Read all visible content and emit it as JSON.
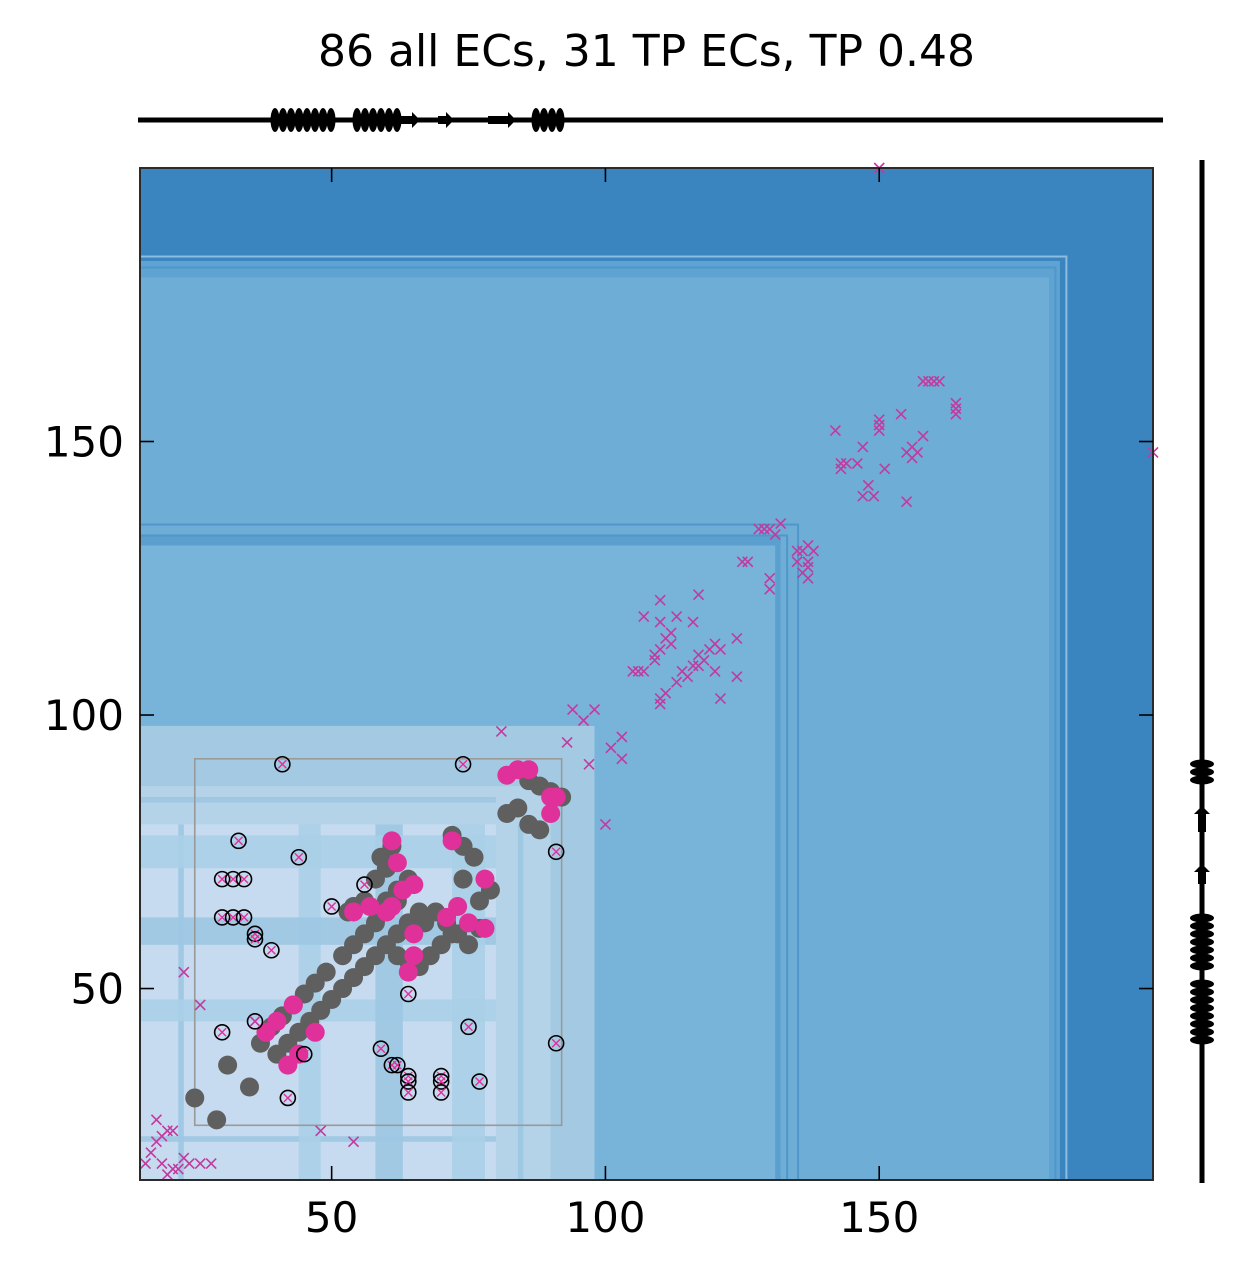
{
  "chart_data": {
    "type": "scatter",
    "title": "86 all ECs, 31 TP ECs, TP 0.48",
    "xlabel": "",
    "ylabel": "",
    "xlim": [
      15,
      200
    ],
    "ylim": [
      15,
      200
    ],
    "x_ticks": [
      50,
      100,
      150
    ],
    "y_ticks": [
      50,
      100,
      150
    ],
    "grid": false,
    "colors": {
      "contact_map_dark": "#3a85c0",
      "contact_map_mid": "#6eaed6",
      "contact_map_light": "#c6dbef",
      "true_contacts": "#5f5f5f",
      "tp_predictions": "#e0309a",
      "other_predictions": "#c23aa0",
      "region_box": "#999999",
      "secondary_structure": "#000000"
    },
    "region_box": {
      "x": [
        25,
        92
      ],
      "y": [
        25,
        92
      ]
    },
    "series": [
      {
        "marker": "filled-circle-gray",
        "points": [
          [
            25,
            30
          ],
          [
            29,
            26
          ],
          [
            31,
            36
          ],
          [
            35,
            32
          ],
          [
            37,
            40
          ],
          [
            39,
            43
          ],
          [
            41,
            45
          ],
          [
            43,
            47
          ],
          [
            45,
            49
          ],
          [
            47,
            51
          ],
          [
            49,
            53
          ],
          [
            40,
            38
          ],
          [
            42,
            40
          ],
          [
            44,
            42
          ],
          [
            46,
            44
          ],
          [
            48,
            46
          ],
          [
            50,
            48
          ],
          [
            52,
            50
          ],
          [
            54,
            52
          ],
          [
            56,
            54
          ],
          [
            58,
            56
          ],
          [
            60,
            58
          ],
          [
            62,
            60
          ],
          [
            64,
            62
          ],
          [
            66,
            64
          ],
          [
            52,
            56
          ],
          [
            54,
            58
          ],
          [
            56,
            60
          ],
          [
            58,
            62
          ],
          [
            60,
            64
          ],
          [
            62,
            66
          ],
          [
            58,
            70
          ],
          [
            60,
            72
          ],
          [
            59,
            74
          ],
          [
            61,
            76
          ],
          [
            60,
            66
          ],
          [
            62,
            68
          ],
          [
            64,
            70
          ],
          [
            67,
            62
          ],
          [
            69,
            64
          ],
          [
            71,
            62
          ],
          [
            73,
            60
          ],
          [
            75,
            58
          ],
          [
            77,
            61
          ],
          [
            77,
            66
          ],
          [
            79,
            68
          ],
          [
            74,
            70
          ],
          [
            72,
            78
          ],
          [
            74,
            76
          ],
          [
            76,
            74
          ],
          [
            82,
            82
          ],
          [
            84,
            83
          ],
          [
            86,
            80
          ],
          [
            88,
            79
          ],
          [
            86,
            88
          ],
          [
            88,
            87
          ],
          [
            90,
            86
          ],
          [
            92,
            85
          ],
          [
            62,
            56
          ],
          [
            64,
            55
          ],
          [
            66,
            54
          ],
          [
            68,
            56
          ],
          [
            70,
            58
          ],
          [
            72,
            60
          ],
          [
            56,
            66
          ],
          [
            54,
            65
          ],
          [
            53,
            64
          ]
        ]
      },
      {
        "marker": "filled-circle-magenta",
        "points": [
          [
            38,
            42
          ],
          [
            40,
            44
          ],
          [
            43,
            47
          ],
          [
            42,
            36
          ],
          [
            44,
            38
          ],
          [
            47,
            42
          ],
          [
            54,
            64
          ],
          [
            57,
            65
          ],
          [
            60,
            64
          ],
          [
            61,
            65
          ],
          [
            61,
            77
          ],
          [
            62,
            73
          ],
          [
            63,
            68
          ],
          [
            65,
            69
          ],
          [
            65,
            60
          ],
          [
            65,
            56
          ],
          [
            64,
            53
          ],
          [
            71,
            63
          ],
          [
            73,
            65
          ],
          [
            75,
            62
          ],
          [
            78,
            61
          ],
          [
            78,
            70
          ],
          [
            72,
            77
          ],
          [
            82,
            89
          ],
          [
            84,
            90
          ],
          [
            86,
            90
          ],
          [
            90,
            82
          ],
          [
            91,
            85
          ],
          [
            90,
            85
          ]
        ]
      },
      {
        "marker": "open-circle-black",
        "points": [
          [
            41,
            91
          ],
          [
            74,
            91
          ],
          [
            30,
            70
          ],
          [
            32,
            70
          ],
          [
            34,
            70
          ],
          [
            33,
            77
          ],
          [
            44,
            74
          ],
          [
            50,
            65
          ],
          [
            30,
            63
          ],
          [
            32,
            63
          ],
          [
            34,
            63
          ],
          [
            36,
            60
          ],
          [
            36,
            59
          ],
          [
            39,
            57
          ],
          [
            36,
            44
          ],
          [
            30,
            42
          ],
          [
            45,
            38
          ],
          [
            42,
            30
          ],
          [
            59,
            39
          ],
          [
            61,
            36
          ],
          [
            62,
            36
          ],
          [
            64,
            34
          ],
          [
            64,
            33
          ],
          [
            64,
            31
          ],
          [
            70,
            34
          ],
          [
            70,
            33
          ],
          [
            70,
            31
          ],
          [
            75,
            43
          ],
          [
            77,
            33
          ],
          [
            64,
            49
          ],
          [
            91,
            75
          ],
          [
            91,
            40
          ],
          [
            56,
            69
          ]
        ]
      },
      {
        "marker": "x-magenta",
        "points": [
          [
            16,
            18
          ],
          [
            17,
            20
          ],
          [
            18,
            22
          ],
          [
            19,
            23
          ],
          [
            20,
            24
          ],
          [
            18,
            26
          ],
          [
            21,
            24
          ],
          [
            19,
            18
          ],
          [
            20,
            16
          ],
          [
            21,
            17
          ],
          [
            22,
            17
          ],
          [
            23,
            19
          ],
          [
            24,
            18
          ],
          [
            26,
            18
          ],
          [
            28,
            18
          ],
          [
            23,
            53
          ],
          [
            26,
            47
          ],
          [
            36,
            44
          ],
          [
            48,
            24
          ],
          [
            54,
            22
          ],
          [
            81,
            97
          ],
          [
            93,
            95
          ],
          [
            94,
            101
          ],
          [
            96,
            99
          ],
          [
            97,
            91
          ],
          [
            98,
            101
          ],
          [
            100,
            80
          ],
          [
            101,
            94
          ],
          [
            103,
            92
          ],
          [
            103,
            96
          ],
          [
            105,
            108
          ],
          [
            106,
            108
          ],
          [
            107,
            108
          ],
          [
            107,
            118
          ],
          [
            109,
            110
          ],
          [
            109,
            111
          ],
          [
            110,
            112
          ],
          [
            110,
            121
          ],
          [
            110,
            117
          ],
          [
            110,
            103
          ],
          [
            110,
            102
          ],
          [
            111,
            104
          ],
          [
            111,
            114
          ],
          [
            112,
            115
          ],
          [
            112,
            113
          ],
          [
            113,
            106
          ],
          [
            113,
            118
          ],
          [
            114,
            108
          ],
          [
            115,
            107
          ],
          [
            116,
            109
          ],
          [
            116,
            117
          ],
          [
            117,
            109
          ],
          [
            117,
            111
          ],
          [
            117,
            122
          ],
          [
            118,
            110
          ],
          [
            119,
            112
          ],
          [
            120,
            113
          ],
          [
            120,
            108
          ],
          [
            121,
            112
          ],
          [
            121,
            103
          ],
          [
            124,
            107
          ],
          [
            124,
            114
          ],
          [
            125,
            128
          ],
          [
            126,
            128
          ],
          [
            128,
            134
          ],
          [
            129,
            134
          ],
          [
            130,
            134
          ],
          [
            130,
            123
          ],
          [
            130,
            125
          ],
          [
            131,
            133
          ],
          [
            132,
            135
          ],
          [
            135,
            128
          ],
          [
            135,
            130
          ],
          [
            136,
            130
          ],
          [
            136,
            126
          ],
          [
            137,
            127
          ],
          [
            137,
            125
          ],
          [
            137,
            128
          ],
          [
            137,
            131
          ],
          [
            138,
            130
          ],
          [
            142,
            152
          ],
          [
            143,
            146
          ],
          [
            143,
            145
          ],
          [
            144,
            146
          ],
          [
            146,
            146
          ],
          [
            147,
            140
          ],
          [
            147,
            149
          ],
          [
            148,
            142
          ],
          [
            149,
            140
          ],
          [
            150,
            153
          ],
          [
            150,
            154
          ],
          [
            150,
            152
          ],
          [
            151,
            145
          ],
          [
            154,
            155
          ],
          [
            155,
            139
          ],
          [
            155,
            148
          ],
          [
            156,
            147
          ],
          [
            156,
            149
          ],
          [
            157,
            148
          ],
          [
            158,
            151
          ],
          [
            158,
            161
          ],
          [
            159,
            161
          ],
          [
            160,
            161
          ],
          [
            161,
            161
          ],
          [
            164,
            157
          ],
          [
            164,
            156
          ],
          [
            164,
            155
          ],
          [
            150,
            200
          ],
          [
            200,
            148
          ]
        ]
      }
    ]
  }
}
